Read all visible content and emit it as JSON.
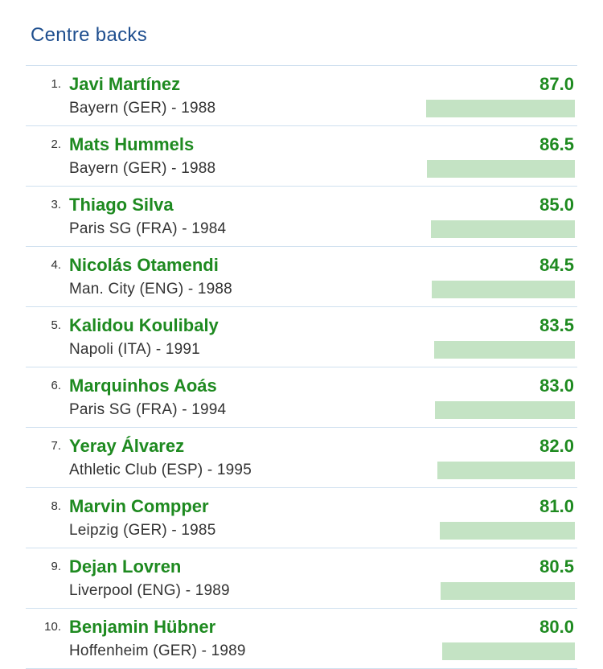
{
  "title": "Centre backs",
  "colors": {
    "title": "#1f4f8f",
    "name": "#1e8a20",
    "bar": "#c4e3c4",
    "divider": "#cfe0ef"
  },
  "players": [
    {
      "rank": "1.",
      "name": "Javi Martínez",
      "meta": "Bayern (GER) - 1988",
      "score": "87.0",
      "rating": 87.0
    },
    {
      "rank": "2.",
      "name": "Mats Hummels",
      "meta": "Bayern (GER) - 1988",
      "score": "86.5",
      "rating": 86.5
    },
    {
      "rank": "3.",
      "name": "Thiago Silva",
      "meta": "Paris SG (FRA) - 1984",
      "score": "85.0",
      "rating": 85.0
    },
    {
      "rank": "4.",
      "name": "Nicolás Otamendi",
      "meta": "Man. City (ENG) - 1988",
      "score": "84.5",
      "rating": 84.5
    },
    {
      "rank": "5.",
      "name": "Kalidou Koulibaly",
      "meta": "Napoli (ITA) - 1991",
      "score": "83.5",
      "rating": 83.5
    },
    {
      "rank": "6.",
      "name": "Marquinhos Aoás",
      "meta": "Paris SG (FRA) - 1994",
      "score": "83.0",
      "rating": 83.0
    },
    {
      "rank": "7.",
      "name": "Yeray Álvarez",
      "meta": "Athletic Club (ESP) - 1995",
      "score": "82.0",
      "rating": 82.0
    },
    {
      "rank": "8.",
      "name": "Marvin Compper",
      "meta": "Leipzig (GER) - 1985",
      "score": "81.0",
      "rating": 81.0
    },
    {
      "rank": "9.",
      "name": "Dejan Lovren",
      "meta": "Liverpool (ENG) - 1989",
      "score": "80.5",
      "rating": 80.5
    },
    {
      "rank": "10.",
      "name": "Benjamin Hübner",
      "meta": "Hoffenheim (GER) - 1989",
      "score": "80.0",
      "rating": 80.0
    }
  ]
}
